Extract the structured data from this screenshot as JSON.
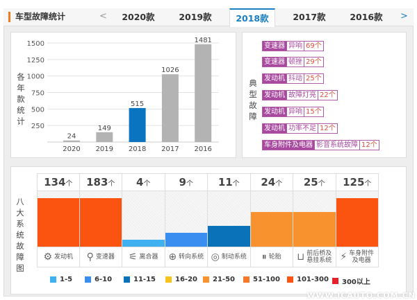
{
  "header": {
    "title": "车型故障统计",
    "prev": "<",
    "next": ">",
    "tabs": [
      {
        "label": "2020款"
      },
      {
        "label": "2019款"
      },
      {
        "label": "2018款",
        "active": true
      },
      {
        "label": "2017款"
      },
      {
        "label": "2016款"
      }
    ]
  },
  "year_chart_label": "各年款统计",
  "typical_label": "典型故障",
  "typical": [
    {
      "part": "变速器",
      "issue": "异响",
      "count": "69个"
    },
    {
      "part": "变速器",
      "issue": "顿挫",
      "count": "29个"
    },
    {
      "part": "发动机",
      "issue": "抖动",
      "count": "25个"
    },
    {
      "part": "发动机",
      "issue": "故障灯亮",
      "count": "22个"
    },
    {
      "part": "发动机",
      "issue": "异响",
      "count": "15个"
    },
    {
      "part": "发动机",
      "issue": "功率不足",
      "count": "12个"
    },
    {
      "part": "车身附件及电器",
      "issue": "影音系统故障",
      "count": "12个"
    }
  ],
  "systems_label": "八大系统故障图",
  "unit": "个",
  "colors": {
    "accent": "#1a7fc1",
    "highlight_bar": "#0a74c0",
    "grey_bar": "#b3b3b3",
    "tag": "#a8499f"
  },
  "watermark": "WWW.ICAUTO.COM.CN",
  "chart_data": [
    {
      "type": "bar",
      "categories": [
        "2020",
        "2019",
        "2018",
        "2017",
        "2016"
      ],
      "values": [
        24,
        149,
        515,
        1026,
        1481
      ],
      "highlight": "2018",
      "ylim": [
        0,
        1500
      ],
      "yticks": [
        250,
        500,
        750,
        1000,
        1250,
        1500
      ],
      "grid": true,
      "ylabel": "各年款统计"
    },
    {
      "type": "bar",
      "categories": [
        "发动机",
        "变速器",
        "离合器",
        "转向系统",
        "制动系统",
        "轮胎",
        "前后桥及悬挂系统",
        "车身附件及电器"
      ],
      "icons": [
        "engine-icon",
        "gear-shift-icon",
        "clutch-icon",
        "steering-wheel-icon",
        "brake-disc-icon",
        "tire-icon",
        "suspension-icon",
        "battery-icon"
      ],
      "values": [
        134,
        183,
        4,
        9,
        11,
        24,
        25,
        125
      ],
      "ylabel": "八大系统故障图",
      "legend": [
        {
          "label": "1-5",
          "color": "#3fb0f0"
        },
        {
          "label": "6-10",
          "color": "#3a8ef0"
        },
        {
          "label": "11-15",
          "color": "#0a72b8"
        },
        {
          "label": "16-20",
          "color": "#f8c21c"
        },
        {
          "label": "21-50",
          "color": "#f7922e"
        },
        {
          "label": "51-100",
          "color": "#f47a2a"
        },
        {
          "label": "101-300",
          "color": "#fb5411"
        },
        {
          "label": "300以上",
          "color": "#e8202a"
        }
      ]
    }
  ]
}
